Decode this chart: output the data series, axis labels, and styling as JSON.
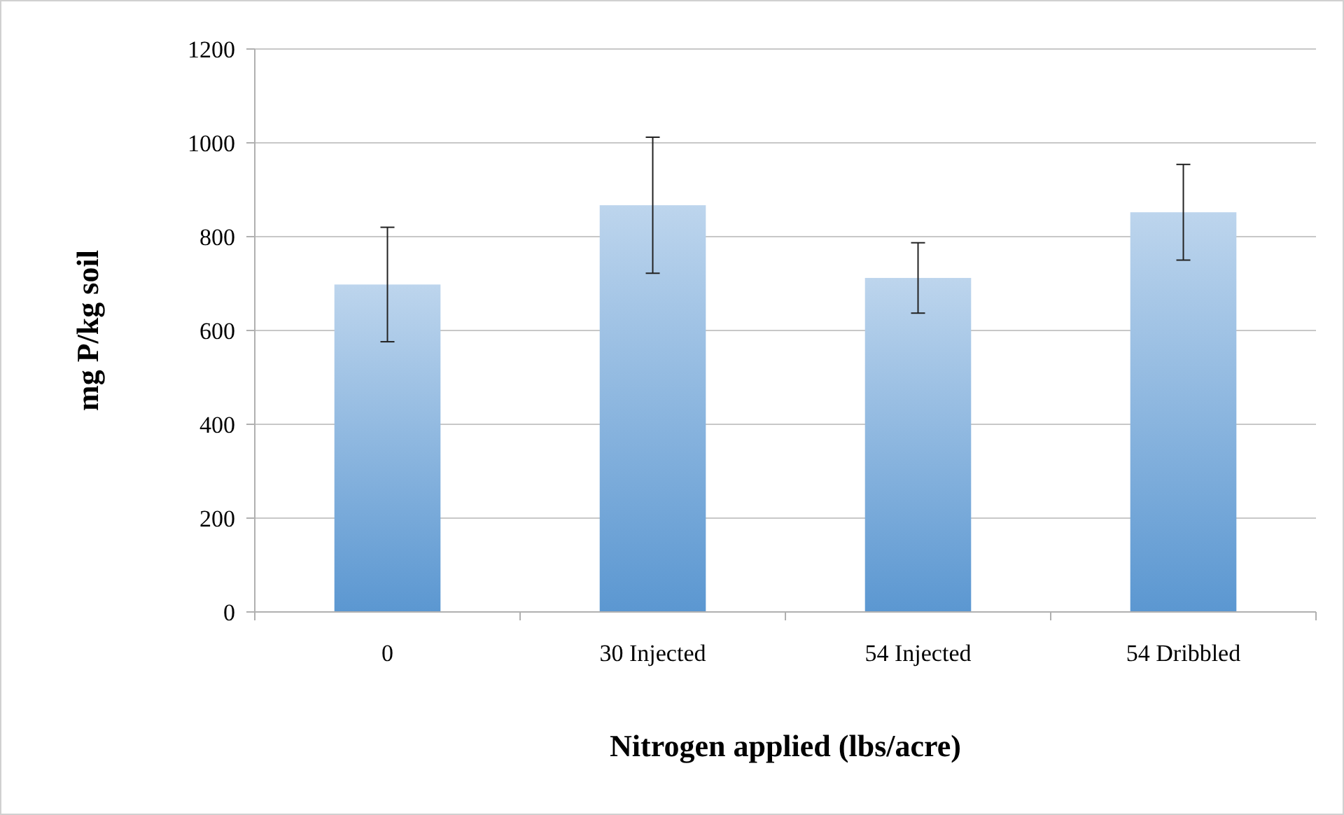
{
  "chart_data": {
    "type": "bar",
    "xlabel": "Nitrogen applied (lbs/acre)",
    "ylabel": "mg P/kg soil",
    "categories": [
      "0",
      "30 Injected",
      "54 Injected",
      "54 Dribbled"
    ],
    "values": [
      698,
      867,
      712,
      852
    ],
    "errors": [
      122,
      145,
      75,
      102
    ],
    "color": "#5b97d1",
    "ylim": [
      0,
      1200
    ],
    "yticks": [
      0,
      200,
      400,
      600,
      800,
      1000,
      1200
    ],
    "grid": "y"
  }
}
